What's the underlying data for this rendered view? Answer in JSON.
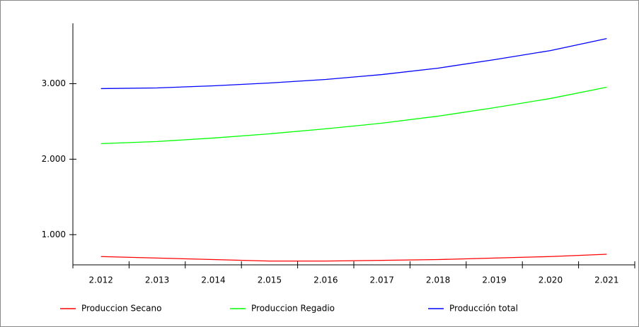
{
  "chart_data": {
    "type": "line",
    "categories": [
      "2.012",
      "2.013",
      "2.014",
      "2.015",
      "2.016",
      "2.017",
      "2.018",
      "2.019",
      "2.020",
      "2.021"
    ],
    "series": [
      {
        "name": "Produccion Secano",
        "color": "#ff0000",
        "values": [
          710,
          690,
          670,
          650,
          650,
          660,
          670,
          690,
          710,
          740
        ]
      },
      {
        "name": "Produccion Regadio",
        "color": "#00ff00",
        "values": [
          2206,
          2234,
          2280,
          2336,
          2402,
          2477,
          2570,
          2682,
          2804,
          2953
        ]
      },
      {
        "name": "Producción total",
        "color": "#0000ff",
        "values": [
          2935,
          2944,
          2972,
          3009,
          3056,
          3121,
          3206,
          3318,
          3439,
          3598
        ]
      }
    ],
    "ylim": [
      600,
      3800
    ],
    "yticks": [
      {
        "value": 1000,
        "label": "1.000"
      },
      {
        "value": 2000,
        "label": "2.000"
      },
      {
        "value": 3000,
        "label": "3.000"
      }
    ],
    "legend": "bottom"
  }
}
